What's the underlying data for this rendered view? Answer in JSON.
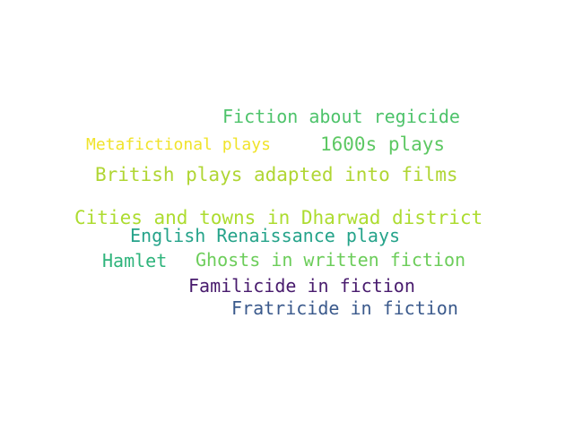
{
  "words": [
    {
      "text": "Fiction about regicide",
      "color": "#4ec36b"
    },
    {
      "text": "Metafictional plays",
      "color": "#f0e32a"
    },
    {
      "text": "1600s plays",
      "color": "#5dc863"
    },
    {
      "text": "British plays adapted into films",
      "color": "#b0d634"
    },
    {
      "text": "Cities and towns in Dharwad district",
      "color": "#addc30"
    },
    {
      "text": "English Renaissance plays",
      "color": "#25a38a"
    },
    {
      "text": "Hamlet",
      "color": "#2fb47c"
    },
    {
      "text": "Ghosts in written fiction",
      "color": "#6ccd5a"
    },
    {
      "text": "Familicide in fiction",
      "color": "#481b6d"
    },
    {
      "text": "Fratricide in fiction",
      "color": "#3b5a8c"
    }
  ]
}
